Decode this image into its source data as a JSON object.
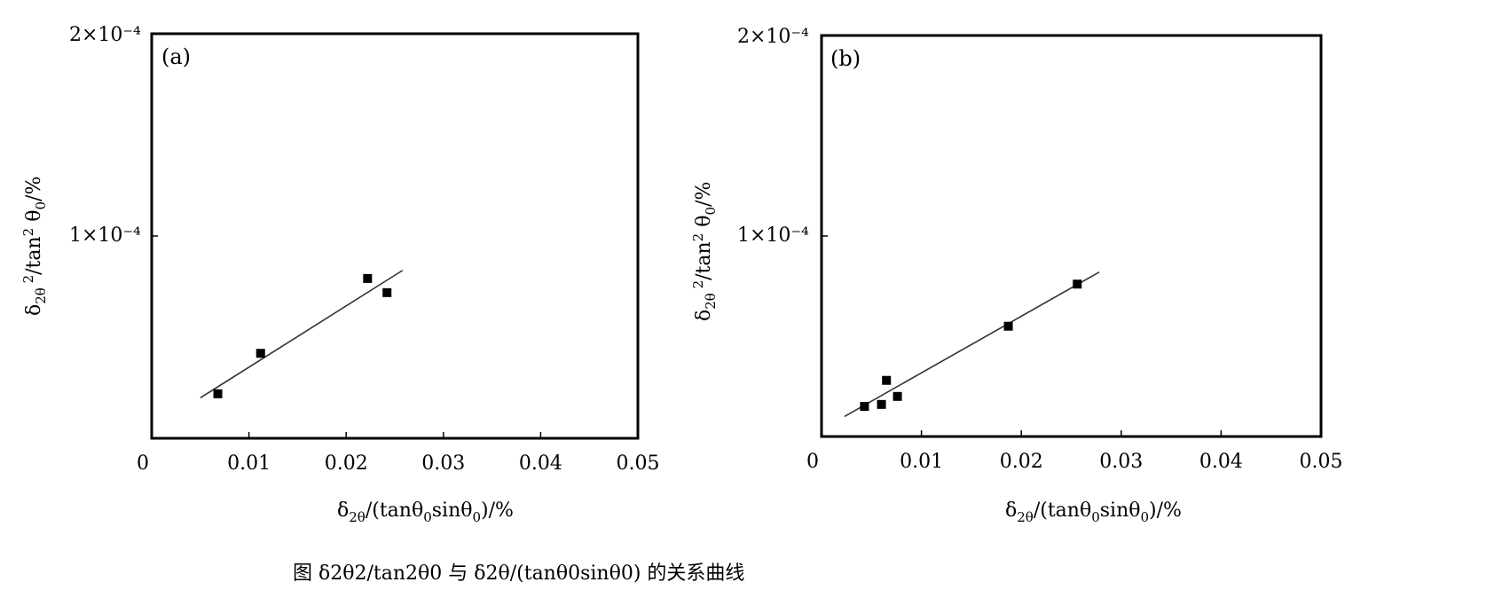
{
  "chart_data": [
    {
      "type": "scatter",
      "panel_label": "(a)",
      "xlabel": "δ2θ/(tanθ0sinθ0)/%",
      "ylabel": "δ2θ2/tan2θ0/%",
      "xlim": [
        0,
        0.05
      ],
      "ylim": [
        0,
        0.0002
      ],
      "x_ticks": [
        0,
        0.01,
        0.02,
        0.03,
        0.04,
        0.05
      ],
      "x_tick_labels": [
        "0",
        "0.01",
        "0.02",
        "0.03",
        "0.04",
        "0.05"
      ],
      "y_ticks": [
        0.0001,
        0.0002
      ],
      "y_tick_labels": [
        "1×10⁻⁴",
        "2×10⁻⁴"
      ],
      "points": [
        {
          "x": 0.0068,
          "y": 2.2e-05
        },
        {
          "x": 0.0112,
          "y": 4.2e-05
        },
        {
          "x": 0.0222,
          "y": 7.9e-05
        },
        {
          "x": 0.0242,
          "y": 7.2e-05
        }
      ],
      "fit_line": {
        "x": [
          0.005,
          0.0258
        ],
        "y": [
          2e-05,
          8.3e-05
        ]
      }
    },
    {
      "type": "scatter",
      "panel_label": "(b)",
      "xlabel": "δ2θ/(tanθ0sinθ0)/%",
      "ylabel": "δ2θ2/tan2θ0/%",
      "xlim": [
        0,
        0.05
      ],
      "ylim": [
        0,
        0.0002
      ],
      "x_ticks": [
        0,
        0.01,
        0.02,
        0.03,
        0.04,
        0.05
      ],
      "x_tick_labels": [
        "0",
        "0.01",
        "0.02",
        "0.03",
        "0.04",
        "0.05"
      ],
      "y_ticks": [
        0.0001,
        0.0002
      ],
      "y_tick_labels": [
        "1×10⁻⁴",
        "2×10⁻⁴"
      ],
      "points": [
        {
          "x": 0.0043,
          "y": 1.5e-05
        },
        {
          "x": 0.006,
          "y": 1.6e-05
        },
        {
          "x": 0.0065,
          "y": 2.8e-05
        },
        {
          "x": 0.0076,
          "y": 2e-05
        },
        {
          "x": 0.0187,
          "y": 5.5e-05
        },
        {
          "x": 0.0256,
          "y": 7.6e-05
        }
      ],
      "fit_line": {
        "x": [
          0.0023,
          0.0278
        ],
        "y": [
          1e-05,
          8.2e-05
        ]
      }
    }
  ],
  "caption": "图  δ2θ2/tan2θ0 与 δ2θ/(tanθ0sinθ0) 的关系曲线"
}
